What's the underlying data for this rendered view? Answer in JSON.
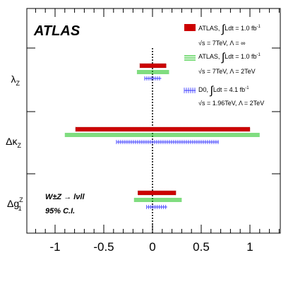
{
  "chart_data": {
    "type": "range",
    "experiment": "ATLAS",
    "categories": [
      {
        "id": "lz",
        "label_main": "λ",
        "label_sub": "Z"
      },
      {
        "id": "dkz",
        "label_main": "Δκ",
        "label_sub": "Z"
      },
      {
        "id": "dg1",
        "label_main": "Δg",
        "label_sup": "Z",
        "label_sub": "1"
      }
    ],
    "xlim": [
      -1.3,
      1.3
    ],
    "x_ticks": [
      -1,
      -0.5,
      0,
      0.5,
      1
    ],
    "x_tick_labels": [
      "-1",
      "-0.5",
      "0",
      "0.5",
      "1"
    ],
    "reference_line": 0,
    "series": [
      {
        "name": "atlas_inf",
        "color": "#cc0000",
        "style": "red-hatched-band",
        "legend_line1": "ATLAS, ",
        "legend_lumi": "Ldt = 1.0 fb",
        "legend_exp": "-1",
        "legend_line2": "s = 7TeV, Λ = ∞",
        "intervals": [
          {
            "category": "lz",
            "low": -0.13,
            "high": 0.14
          },
          {
            "category": "dkz",
            "low": -0.79,
            "high": 1.0
          },
          {
            "category": "dg1",
            "low": -0.15,
            "high": 0.24
          }
        ]
      },
      {
        "name": "atlas_2tev",
        "color": "#00bb00",
        "style": "green-lines",
        "legend_line1": "ATLAS, ",
        "legend_lumi": "Ldt = 1.0 fb",
        "legend_exp": "-1",
        "legend_line2": "s = 7TeV, Λ = 2TeV",
        "intervals": [
          {
            "category": "lz",
            "low": -0.16,
            "high": 0.17
          },
          {
            "category": "dkz",
            "low": -0.9,
            "high": 1.1
          },
          {
            "category": "dg1",
            "low": -0.19,
            "high": 0.3
          }
        ]
      },
      {
        "name": "d0_2tev",
        "color": "#3333ff",
        "style": "blue-ticks",
        "legend_line1": "D0, ",
        "legend_lumi": "Ldt = 4.1 fb",
        "legend_exp": "-1",
        "legend_line2": "s = 1.96TeV, Λ = 2TeV",
        "intervals": [
          {
            "category": "lz",
            "low": -0.08,
            "high": 0.09
          },
          {
            "category": "dkz",
            "low": -0.37,
            "high": 0.68
          },
          {
            "category": "dg1",
            "low": -0.06,
            "high": 0.15
          }
        ]
      }
    ],
    "annotation_process": "W±Z → lνll",
    "annotation_cl": "95% C.I."
  }
}
